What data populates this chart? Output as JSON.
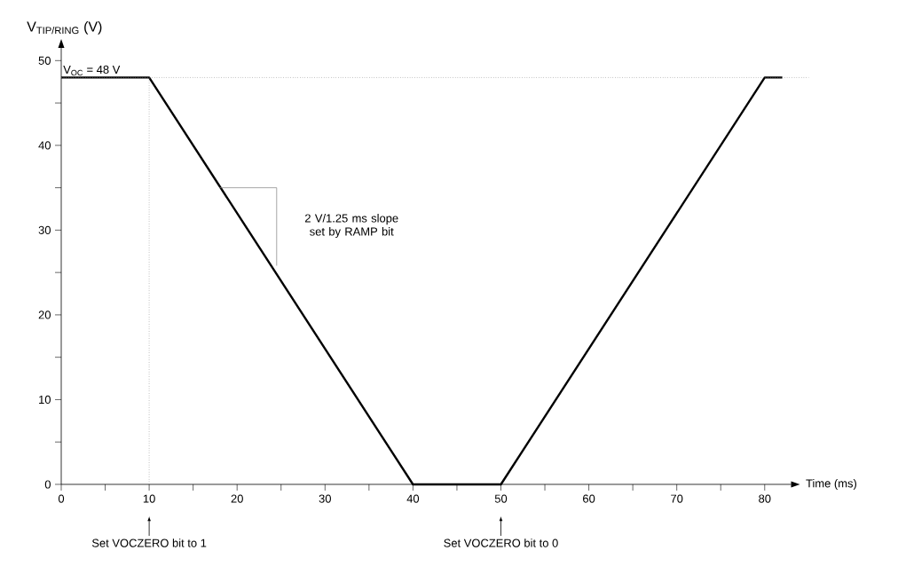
{
  "chart_data": {
    "type": "line",
    "xlabel": "Time (ms)",
    "ylabel": "V$_{TIP/RING}$ (V)",
    "x": [
      0,
      10,
      40,
      50,
      80,
      82
    ],
    "series": [
      {
        "color": "#000000",
        "values": [
          48,
          48,
          0,
          0,
          48,
          48
        ]
      }
    ],
    "xlim": [
      0,
      83
    ],
    "ylim": [
      0,
      51.5
    ],
    "xticks": [
      0,
      {
        "value": 5,
        "label": null
      },
      10,
      {
        "value": 15,
        "label": null
      },
      20,
      {
        "value": 25,
        "label": null
      },
      30,
      {
        "value": 35,
        "label": null
      },
      40,
      {
        "value": 45,
        "label": null
      },
      50,
      {
        "value": 55,
        "label": null
      },
      60,
      {
        "value": 65,
        "label": null
      },
      70,
      {
        "value": 75,
        "label": null
      },
      80
    ],
    "yticks": [
      0,
      {
        "value": 5,
        "label": null
      },
      10,
      {
        "value": 15,
        "label": null
      },
      20,
      {
        "value": 25,
        "label": null
      },
      30,
      {
        "value": 35,
        "label": null
      },
      40,
      {
        "value": 45,
        "label": null
      },
      50
    ],
    "ref_lines": [
      {
        "axis": "y",
        "value": 48,
        "label": "V$_{OC}$ = 48 V",
        "line_style": "dotted",
        "color": "#808080"
      },
      {
        "axis": "x",
        "value": 10,
        "label": null,
        "line_style": "dotted",
        "color": "#808080"
      }
    ],
    "annotations": [
      "2 V/1.25 ms slope set by RAMP bit",
      "Set VOCZERO bit to 1",
      "Set VOCZERO bit to 0"
    ],
    "grid": false,
    "marker": "none",
    "line_style": "solid"
  }
}
